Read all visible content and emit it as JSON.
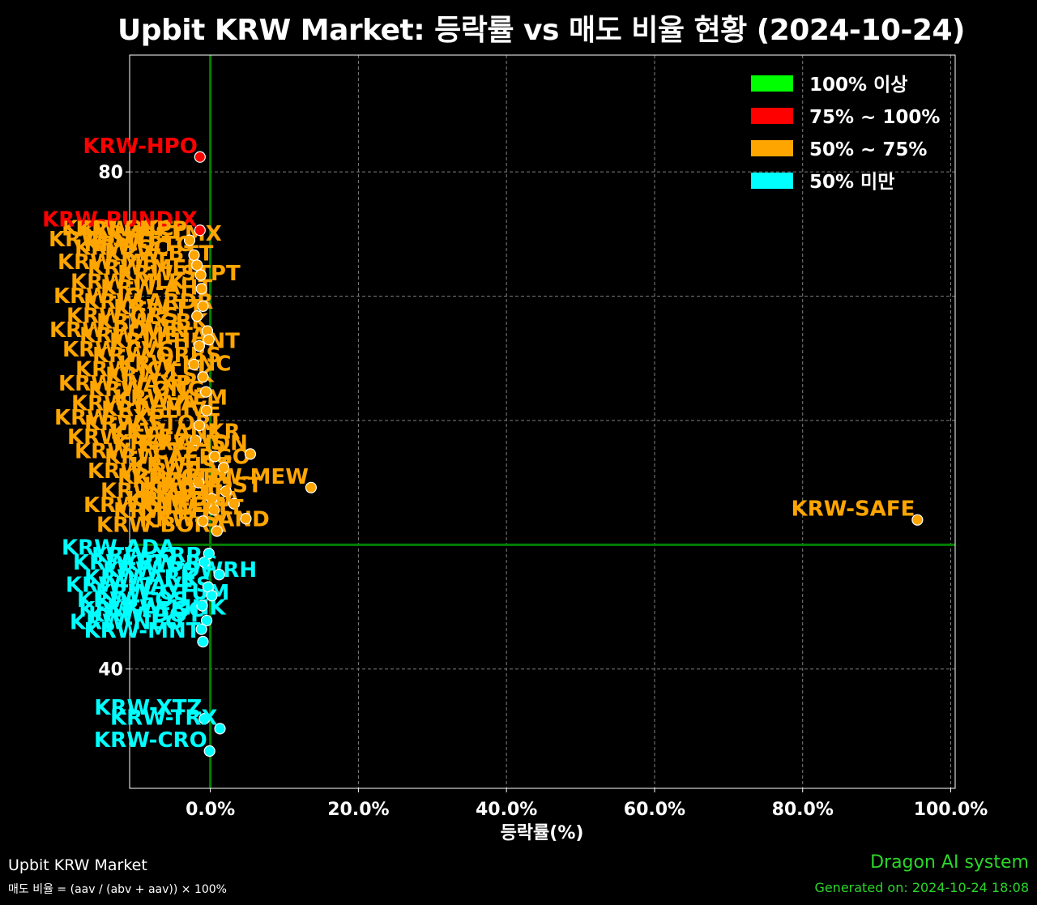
{
  "title": "Upbit KRW Market: 등락률 vs 매도 비율 현황 (2024-10-24)",
  "footer": {
    "left_title": "Upbit KRW Market",
    "left_formula": "매도 비율 = (aav / (abv + aav)) × 100%",
    "right_brand": "Dragon AI system",
    "right_generated": "Generated on: 2024-10-24 18:08"
  },
  "colors": {
    "bg": "#000000",
    "ge100": "#00ff00",
    "r75_100": "#ff0000",
    "r50_75": "#ffa500",
    "lt50": "#00ffff",
    "ref_line": "#008000",
    "grid": "#808080",
    "footer_text": "#2bd62b"
  },
  "chart_data": {
    "type": "scatter",
    "xlabel": "등락률(%)",
    "ylabel": "",
    "xlim": [
      -10.9,
      100.6
    ],
    "ylim": [
      30.4,
      89.4
    ],
    "xticks": [
      0,
      20,
      40,
      60,
      80,
      100
    ],
    "xtick_labels": [
      "0.0%",
      "20.0%",
      "40.0%",
      "60.0%",
      "80.0%",
      "100.0%"
    ],
    "yticks": [
      40,
      80
    ],
    "ytick_labels": [
      "40",
      "80"
    ],
    "grid": true,
    "ref_lines": {
      "x": 0,
      "y": 50
    },
    "legend": {
      "placement": "top-right",
      "entries": [
        {
          "label": "100% 이상",
          "color_key": "ge100"
        },
        {
          "label": "75% ~ 100%",
          "color_key": "r75_100"
        },
        {
          "label": "50% ~ 75%",
          "color_key": "r50_75"
        },
        {
          "label": "50% 미만",
          "color_key": "lt50"
        }
      ]
    },
    "series": [
      {
        "category": "r75_100",
        "points": [
          {
            "label": "KRW-HPO",
            "x": -1.4,
            "y": 81.2
          },
          {
            "label": "KRW-PUNDIX",
            "x": -1.4,
            "y": 75.3
          }
        ]
      },
      {
        "category": "r50_75",
        "points": [
          {
            "label": "KRW-SAFE",
            "x": 95.5,
            "y": 52.0
          },
          {
            "label": "KRW-MEW",
            "x": 13.6,
            "y": 54.6
          },
          {
            "label": "KRW-UPP",
            "x": -2.8,
            "y": 74.5
          },
          {
            "label": "KRW-ETC",
            "x": -2.2,
            "y": 73.3
          },
          {
            "label": "KRW-ION",
            "x": 5.4,
            "y": 57.3
          },
          {
            "label": "KRW-ALT",
            "x": 4.8,
            "y": 52.1
          },
          {
            "label": "KRW-TH",
            "x": 3.2,
            "y": 53.3
          },
          {
            "label": "KRW-LE",
            "x": 2.1,
            "y": 54.3
          },
          {
            "label": null,
            "x": -1.8,
            "y": 72.5
          },
          {
            "label": null,
            "x": -1.3,
            "y": 71.7
          },
          {
            "label": null,
            "x": -1.2,
            "y": 70.6
          },
          {
            "label": null,
            "x": -1.0,
            "y": 69.2
          },
          {
            "label": null,
            "x": -1.8,
            "y": 68.4
          },
          {
            "label": null,
            "x": -0.4,
            "y": 67.2
          },
          {
            "label": null,
            "x": -0.2,
            "y": 66.5
          },
          {
            "label": null,
            "x": -1.5,
            "y": 66.0
          },
          {
            "label": null,
            "x": -2.2,
            "y": 64.5
          },
          {
            "label": null,
            "x": -1.0,
            "y": 63.5
          },
          {
            "label": null,
            "x": -0.6,
            "y": 62.3
          },
          {
            "label": null,
            "x": -0.5,
            "y": 60.8
          },
          {
            "label": null,
            "x": -1.5,
            "y": 59.6
          },
          {
            "label": null,
            "x": -2.0,
            "y": 58.4
          },
          {
            "label": null,
            "x": 0.6,
            "y": 57.1
          },
          {
            "label": null,
            "x": 1.8,
            "y": 56.2
          },
          {
            "label": null,
            "x": -1.6,
            "y": 55.0
          },
          {
            "label": null,
            "x": 0.2,
            "y": 53.7
          },
          {
            "label": null,
            "x": 0.5,
            "y": 52.8
          },
          {
            "label": null,
            "x": 0.9,
            "y": 51.1
          },
          {
            "label": null,
            "x": -1.0,
            "y": 51.9
          }
        ]
      },
      {
        "category": "lt50",
        "points": [
          {
            "label": "KRW-XTZ",
            "x": -0.8,
            "y": 36.0
          },
          {
            "label": "KRW-TRX",
            "x": 1.3,
            "y": 35.2
          },
          {
            "label": "KRW-CRO",
            "x": -0.1,
            "y": 33.4
          },
          {
            "label": "KRW-MNT",
            "x": -1.0,
            "y": 42.2
          },
          {
            "label": "KRW-ATGC",
            "x": -0.5,
            "y": 43.9
          },
          {
            "label": "KRW-BC",
            "x": 1.2,
            "y": 47.6
          },
          {
            "label": null,
            "x": -0.2,
            "y": 49.3
          },
          {
            "label": null,
            "x": -0.8,
            "y": 48.6
          },
          {
            "label": null,
            "x": -0.3,
            "y": 46.6
          },
          {
            "label": null,
            "x": 0.2,
            "y": 45.9
          },
          {
            "label": null,
            "x": -1.1,
            "y": 45.1
          },
          {
            "label": null,
            "x": -1.2,
            "y": 43.2
          }
        ]
      }
    ],
    "overlap_labels": [
      {
        "category": "r50_75",
        "labels": [
          "KRW-SNT",
          "KRW-STMX",
          "KRW-QKC",
          "KRW-BTT",
          "KRW-SC",
          "KRW-STPT",
          "KRW-MED",
          "KRW-MBL",
          "KRW-AHT",
          "KRW-MLK",
          "KRW-TT",
          "KRW-ARDR",
          "KRW-IQ",
          "KRW-CBK",
          "KRW-GRS",
          "KRW-HUNT",
          "KRW-META",
          "KRW-POWR",
          "KRW-ORBS",
          "KRW-CVC",
          "KRW-LSK",
          "KRW-ICX",
          "KRW-KNC",
          "KRW-ONG",
          "KRW-WAXP",
          "KRW-HIVE",
          "KRW-KAVA",
          "KRW-XEM",
          "KRW-STORJ",
          "KRW-SXP",
          "KRW-GAS",
          "KRW-ELF",
          "KRW-ANKR",
          "KRW-AERGO",
          "KRW-FCT2",
          "KRW-GLM",
          "KRW-BAT",
          "KRW-JST",
          "KRW-ZRX",
          "KRW-IOST",
          "KRW-MTL",
          "KRW-STEEM",
          "KRW-DKA",
          "KRW-BORA",
          "KRW-SAND"
        ]
      },
      {
        "category": "lt50",
        "labels": [
          "KRW-ADA",
          "KRW-XRP",
          "KRW-BTG",
          "KRW-POWRH",
          "KRW-ARK",
          "KRW-WAVES",
          "KRW-QTUM",
          "KRW-EOS",
          "KRW-LINK",
          "KRW-DOT",
          "KRW-NEO"
        ]
      }
    ]
  }
}
